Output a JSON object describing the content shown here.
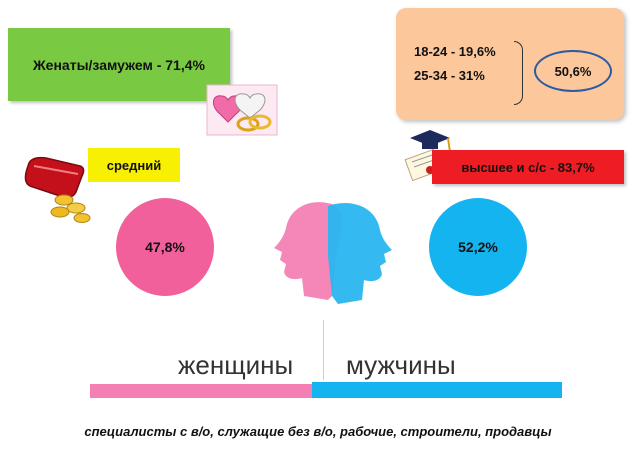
{
  "married": {
    "text": "Женаты/замужем - 71,4%"
  },
  "age": {
    "line1": "18-24 - 19,6%",
    "line2": "25-34 - 31%",
    "total": "50,6%"
  },
  "income": {
    "text": "средний"
  },
  "education": {
    "text": "высшее  и с/с  - 83,7%"
  },
  "women": {
    "percent": "47,8%",
    "label": "женщины",
    "color": "#f2609b"
  },
  "men": {
    "percent": "52,2%",
    "label": "мужчины",
    "color": "#14b4f0"
  },
  "occupations": {
    "text": "специалисты с в/о, служащие без в/о, рабочие, строители, продавцы"
  },
  "icons": [
    "hearts-rings-icon",
    "wallet-coins-icon",
    "graduation-cap-diploma-icon",
    "heads-silhouette-icon"
  ]
}
